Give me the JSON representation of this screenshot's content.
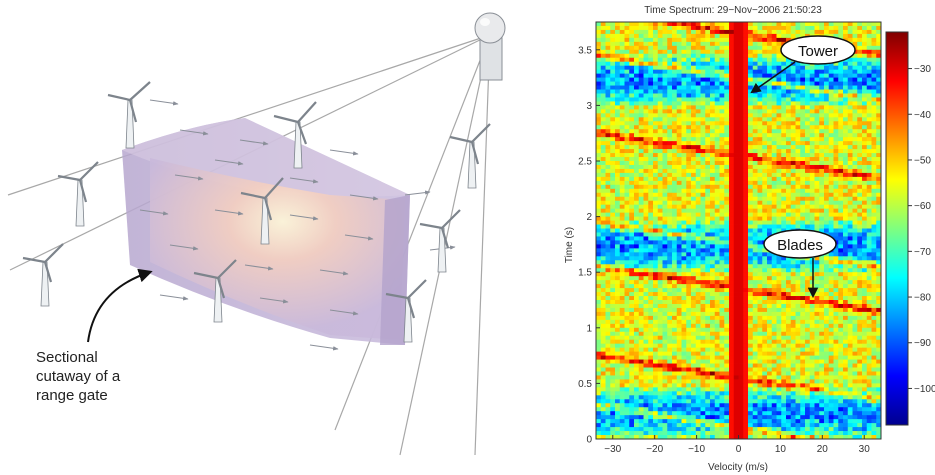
{
  "illustration": {
    "cutaway_label_lines": [
      "Sectional",
      "cutaway of a",
      "range gate"
    ]
  },
  "spectrogram": {
    "title": "Time Spectrum: 29−Nov−2006 21:50:23",
    "xlabel": "Velocity (m/s)",
    "ylabel": "Time (s)",
    "x_ticks": [
      "−30",
      "−20",
      "−10",
      "0",
      "10",
      "20",
      "30"
    ],
    "y_ticks": [
      "0",
      "0.5",
      "1",
      "1.5",
      "2",
      "2.5",
      "3",
      "3.5"
    ],
    "colorbar_ticks": [
      "−30",
      "−40",
      "−50",
      "−60",
      "−70",
      "−80",
      "−90",
      "−100"
    ],
    "callout_tower": "Tower",
    "callout_blades": "Blades"
  },
  "chart_data": {
    "type": "heatmap",
    "title": "Time Spectrum: 29−Nov−2006 21:50:23",
    "xlabel": "Velocity (m/s)",
    "ylabel": "Time (s)",
    "xlim": [
      -34,
      34
    ],
    "ylim": [
      0,
      3.75
    ],
    "colorbar_range": [
      -108,
      -22
    ],
    "colormap": "jet",
    "annotations": [
      "Tower",
      "Blades"
    ],
    "tower_velocity": 0,
    "blade_flash_times": [
      0.1,
      0.55,
      1.35,
      1.75,
      2.55,
      3.25,
      3.65
    ]
  }
}
